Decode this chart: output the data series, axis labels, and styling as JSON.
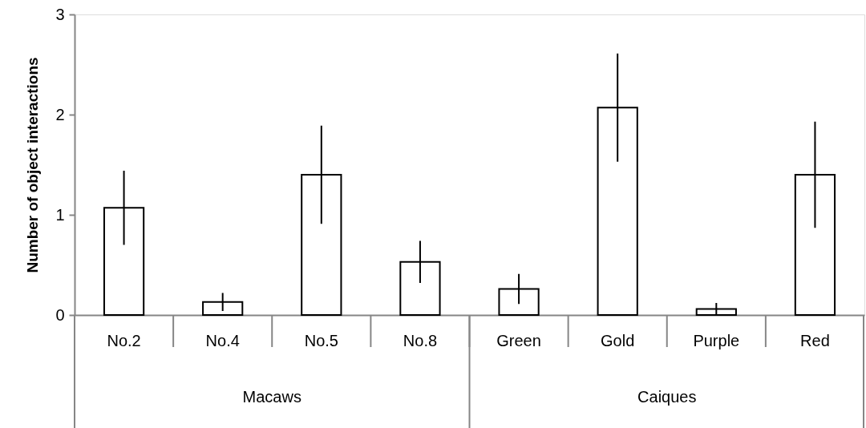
{
  "chart_data": {
    "type": "bar",
    "ylabel": "Number of object interactions",
    "categories": [
      "No.2",
      "No.4",
      "No.5",
      "No.8",
      "Green",
      "Gold",
      "Purple",
      "Red"
    ],
    "values": [
      1.07,
      0.13,
      1.4,
      0.53,
      0.26,
      2.07,
      0.06,
      1.4
    ],
    "errors": [
      0.37,
      0.09,
      0.49,
      0.21,
      0.15,
      0.54,
      0.06,
      0.53
    ],
    "color": "#ffffff",
    "ylim": [
      0,
      3
    ],
    "yticks": [
      0,
      1,
      2,
      3
    ],
    "grid": false,
    "annotations": [
      "Macaws",
      "Caiques"
    ]
  }
}
